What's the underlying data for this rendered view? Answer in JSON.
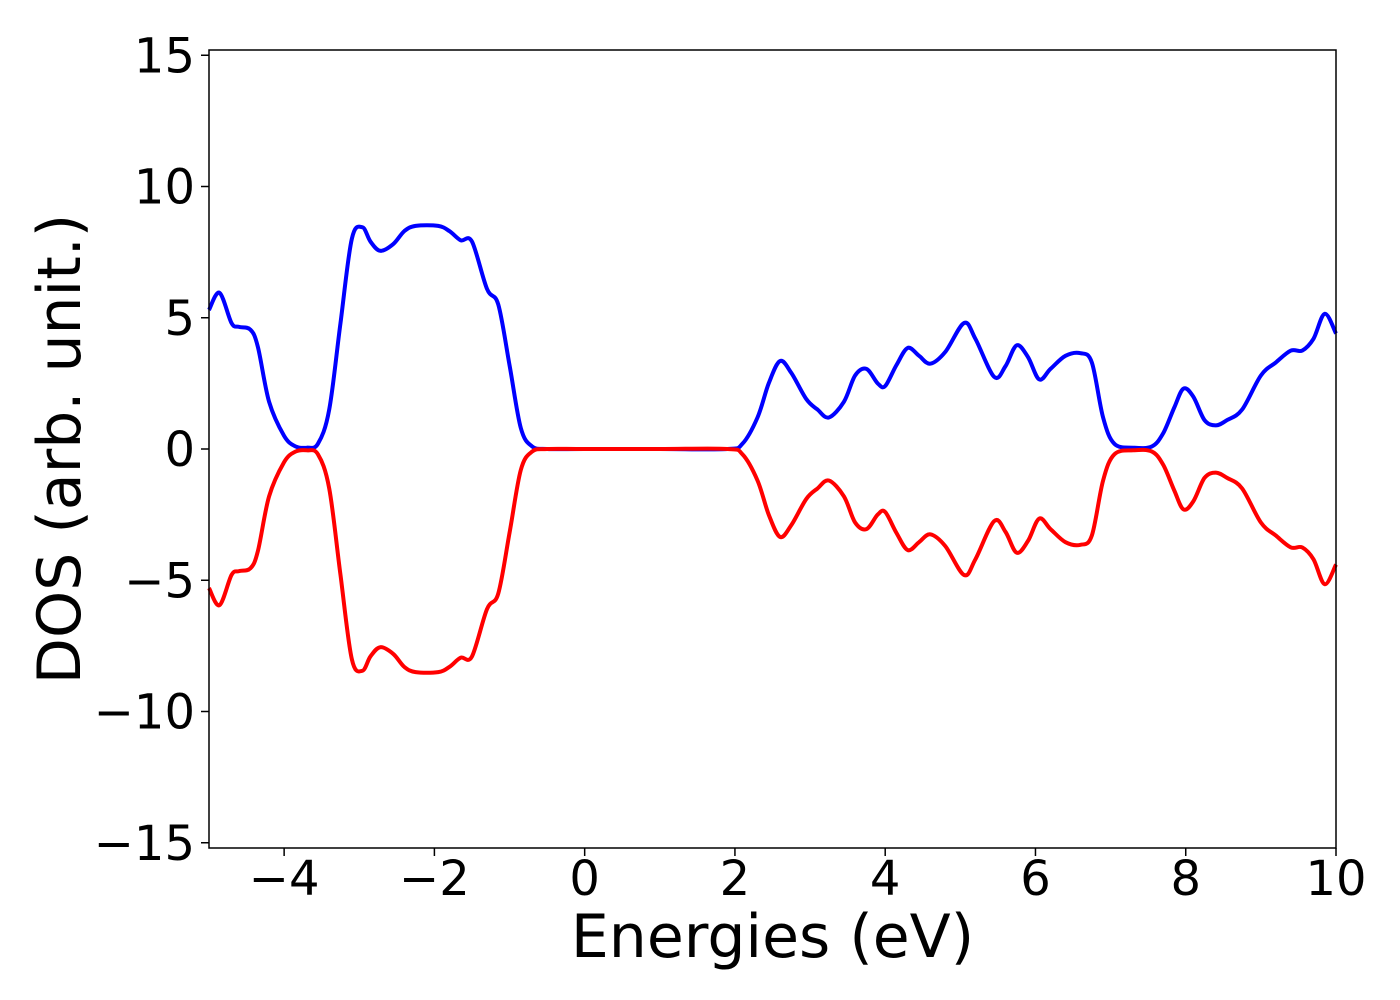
{
  "chart_data": {
    "type": "line",
    "title": "",
    "xlabel": "Energies (eV)",
    "ylabel": "DOS (arb. unit.)",
    "xlim": [
      -5,
      10
    ],
    "ylim": [
      -15.2,
      15.2
    ],
    "xticks": [
      -4,
      -2,
      0,
      2,
      4,
      6,
      8,
      10
    ],
    "yticks": [
      -15,
      -10,
      -5,
      0,
      5,
      10,
      15
    ],
    "xtick_labels": [
      "−4",
      "−2",
      "0",
      "2",
      "4",
      "6",
      "8",
      "10"
    ],
    "ytick_labels": [
      "−15",
      "−10",
      "−5",
      "0",
      "5",
      "10",
      "15"
    ],
    "grid": false,
    "legend": "none",
    "series": [
      {
        "color": "#0000ff",
        "x": [
          -5.0,
          -4.86,
          -4.7,
          -4.6,
          -4.45,
          -4.35,
          -4.2,
          -4.0,
          -3.85,
          -3.7,
          -3.55,
          -3.4,
          -3.25,
          -3.1,
          -2.96,
          -2.85,
          -2.72,
          -2.55,
          -2.4,
          -2.25,
          -1.95,
          -1.8,
          -1.65,
          -1.5,
          -1.3,
          -1.15,
          -1.0,
          -0.85,
          -0.7,
          -0.5,
          0.0,
          1.0,
          1.9,
          2.1,
          2.3,
          2.45,
          2.6,
          2.75,
          2.95,
          3.1,
          3.25,
          3.45,
          3.6,
          3.75,
          3.9,
          4.0,
          4.15,
          4.3,
          4.45,
          4.6,
          4.8,
          5.05,
          5.2,
          5.45,
          5.6,
          5.75,
          5.9,
          6.05,
          6.2,
          6.4,
          6.6,
          6.75,
          6.9,
          7.05,
          7.3,
          7.55,
          7.7,
          7.85,
          7.97,
          8.1,
          8.25,
          8.4,
          8.55,
          8.75,
          9.0,
          9.2,
          9.4,
          9.55,
          9.7,
          9.85,
          10.0
        ],
        "y": [
          5.3,
          5.95,
          4.8,
          4.65,
          4.55,
          3.9,
          1.8,
          0.5,
          0.1,
          0.05,
          0.2,
          1.5,
          4.8,
          8.0,
          8.45,
          7.9,
          7.55,
          7.8,
          8.3,
          8.5,
          8.5,
          8.3,
          7.95,
          7.9,
          6.1,
          5.5,
          3.2,
          0.8,
          0.1,
          0.0,
          0.0,
          0.0,
          0.0,
          0.2,
          1.2,
          2.5,
          3.35,
          2.9,
          1.9,
          1.5,
          1.2,
          1.8,
          2.8,
          3.05,
          2.5,
          2.4,
          3.2,
          3.85,
          3.55,
          3.25,
          3.7,
          4.8,
          4.2,
          2.75,
          3.15,
          3.95,
          3.5,
          2.65,
          3.05,
          3.55,
          3.65,
          3.3,
          1.2,
          0.2,
          0.05,
          0.1,
          0.6,
          1.6,
          2.3,
          2.0,
          1.1,
          0.9,
          1.1,
          1.5,
          2.8,
          3.3,
          3.75,
          3.75,
          4.2,
          5.15,
          4.4
        ]
      },
      {
        "color": "#ff0000",
        "x": [
          -5.0,
          -4.86,
          -4.7,
          -4.6,
          -4.45,
          -4.35,
          -4.2,
          -4.0,
          -3.85,
          -3.7,
          -3.55,
          -3.4,
          -3.25,
          -3.1,
          -2.96,
          -2.85,
          -2.72,
          -2.55,
          -2.4,
          -2.25,
          -1.95,
          -1.8,
          -1.65,
          -1.5,
          -1.3,
          -1.15,
          -1.0,
          -0.85,
          -0.7,
          -0.5,
          0.0,
          1.0,
          1.9,
          2.1,
          2.3,
          2.45,
          2.6,
          2.75,
          2.95,
          3.1,
          3.25,
          3.45,
          3.6,
          3.75,
          3.9,
          4.0,
          4.15,
          4.3,
          4.45,
          4.6,
          4.8,
          5.05,
          5.2,
          5.45,
          5.6,
          5.75,
          5.9,
          6.05,
          6.2,
          6.4,
          6.6,
          6.75,
          6.9,
          7.05,
          7.3,
          7.55,
          7.7,
          7.85,
          7.97,
          8.1,
          8.25,
          8.4,
          8.55,
          8.75,
          9.0,
          9.2,
          9.4,
          9.55,
          9.7,
          9.85,
          10.0
        ],
        "y": [
          -5.3,
          -5.95,
          -4.8,
          -4.65,
          -4.55,
          -3.9,
          -1.8,
          -0.5,
          -0.1,
          -0.05,
          -0.2,
          -1.5,
          -4.8,
          -8.0,
          -8.45,
          -7.9,
          -7.55,
          -7.8,
          -8.3,
          -8.5,
          -8.5,
          -8.3,
          -7.95,
          -7.9,
          -6.1,
          -5.5,
          -3.2,
          -0.8,
          -0.1,
          0.0,
          0.0,
          0.0,
          0.0,
          -0.2,
          -1.2,
          -2.5,
          -3.35,
          -2.9,
          -1.9,
          -1.5,
          -1.2,
          -1.8,
          -2.8,
          -3.05,
          -2.5,
          -2.4,
          -3.2,
          -3.85,
          -3.55,
          -3.25,
          -3.7,
          -4.8,
          -4.2,
          -2.75,
          -3.15,
          -3.95,
          -3.5,
          -2.65,
          -3.05,
          -3.55,
          -3.65,
          -3.3,
          -1.2,
          -0.2,
          -0.05,
          -0.1,
          -0.6,
          -1.6,
          -2.3,
          -2.0,
          -1.1,
          -0.9,
          -1.1,
          -1.5,
          -2.8,
          -3.3,
          -3.75,
          -3.75,
          -4.2,
          -5.15,
          -4.4
        ]
      }
    ]
  }
}
